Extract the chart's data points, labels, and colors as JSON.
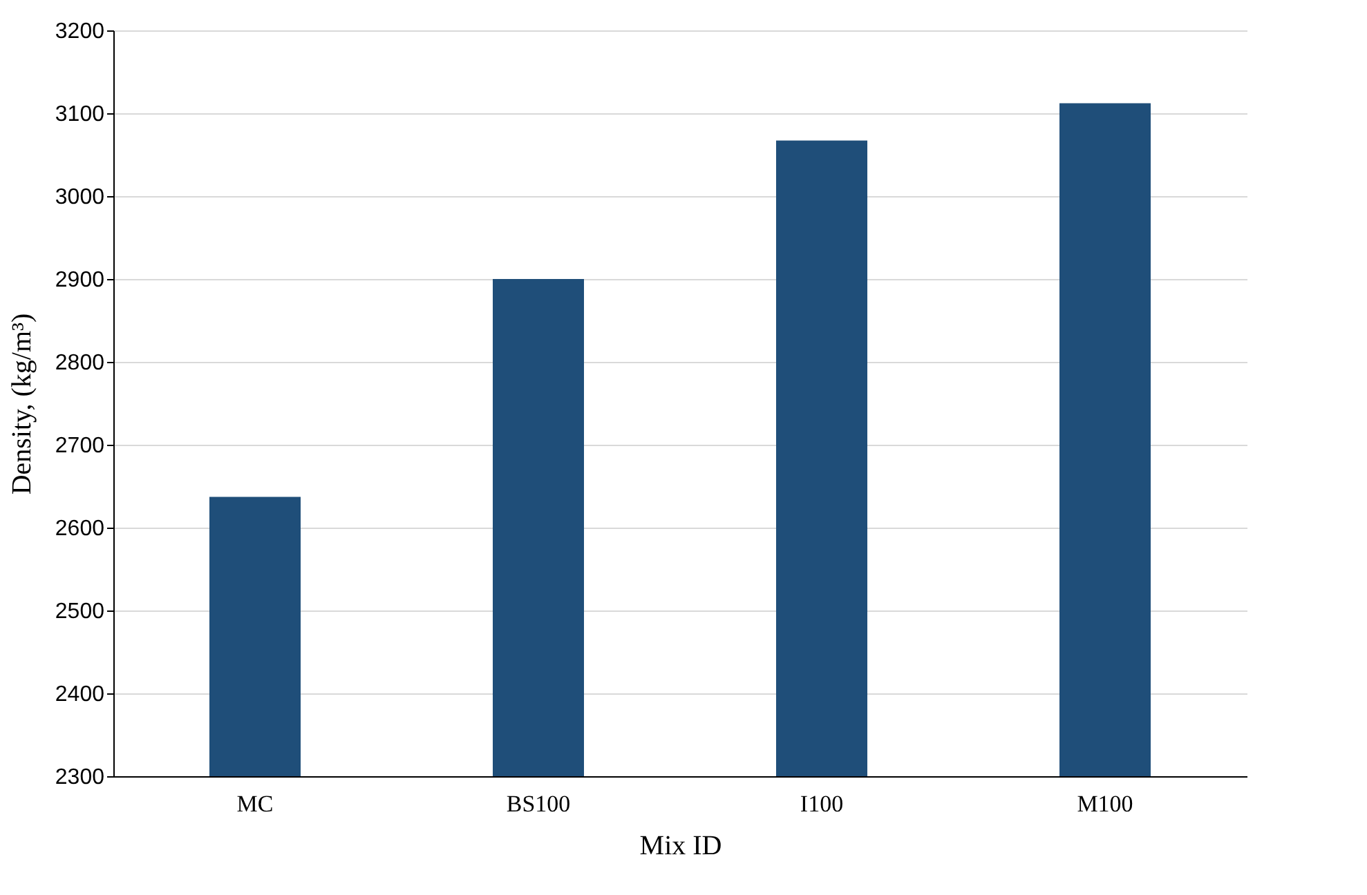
{
  "chart_data": {
    "type": "bar",
    "xlabel": "Mix ID",
    "ylabel": "Density, (kg/m³)",
    "categories": [
      "MC",
      "BS100",
      "I100",
      "M100"
    ],
    "series": [
      {
        "color": "#1f4e79",
        "values": [
          2637,
          2900,
          3067,
          3112
        ]
      }
    ],
    "ylim": [
      2300,
      3200
    ],
    "yticks": [
      2300,
      2400,
      2500,
      2600,
      2700,
      2800,
      2900,
      3000,
      3100,
      3200
    ],
    "grid": "y",
    "legend": false
  }
}
